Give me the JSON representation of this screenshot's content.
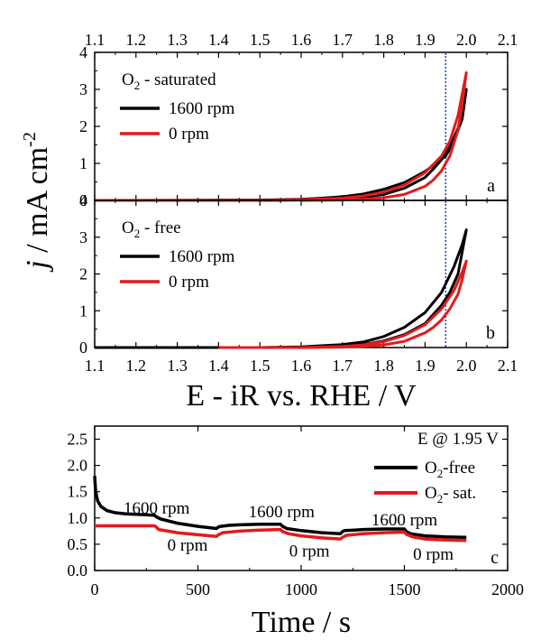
{
  "chart_data": [
    {
      "id": "a",
      "type": "line",
      "panel_label": "a",
      "annotation": {
        "main": "O",
        "sub": "2",
        "rest": " - saturated"
      },
      "legend_position": "top-left",
      "x_range": [
        1.1,
        2.1
      ],
      "y_range": [
        0,
        4
      ],
      "y_ticks": [
        "0",
        "1",
        "2",
        "3",
        "4"
      ],
      "x_ticks_top": [
        "1.1",
        "1.2",
        "1.3",
        "1.4",
        "1.5",
        "1.6",
        "1.7",
        "1.8",
        "1.9",
        "2.0",
        "2.1"
      ],
      "reference_line_x": 1.95,
      "series": [
        {
          "name": "1600 rpm",
          "color": "#000000",
          "forward": [
            [
              1.1,
              0
            ],
            [
              1.5,
              0.01
            ],
            [
              1.6,
              0.03
            ],
            [
              1.65,
              0.06
            ],
            [
              1.7,
              0.1
            ],
            [
              1.75,
              0.17
            ],
            [
              1.8,
              0.3
            ],
            [
              1.85,
              0.48
            ],
            [
              1.9,
              0.78
            ],
            [
              1.95,
              1.2
            ],
            [
              1.97,
              1.6
            ],
            [
              1.99,
              2.2
            ],
            [
              2.0,
              3.0
            ]
          ],
          "reverse": [
            [
              2.0,
              3.0
            ],
            [
              1.99,
              2.45
            ],
            [
              1.98,
              1.95
            ],
            [
              1.96,
              1.45
            ],
            [
              1.94,
              1.1
            ],
            [
              1.92,
              0.85
            ],
            [
              1.9,
              0.62
            ],
            [
              1.85,
              0.33
            ],
            [
              1.8,
              0.16
            ],
            [
              1.75,
              0.08
            ],
            [
              1.7,
              0.04
            ],
            [
              1.6,
              0.01
            ],
            [
              1.5,
              0.0
            ]
          ]
        },
        {
          "name": "0 rpm",
          "color": "#e31a1c",
          "forward": [
            [
              1.1,
              0
            ],
            [
              1.5,
              0.0
            ],
            [
              1.6,
              0.02
            ],
            [
              1.7,
              0.06
            ],
            [
              1.75,
              0.12
            ],
            [
              1.8,
              0.22
            ],
            [
              1.85,
              0.42
            ],
            [
              1.9,
              0.75
            ],
            [
              1.94,
              1.2
            ],
            [
              1.96,
              1.6
            ],
            [
              1.98,
              2.3
            ],
            [
              2.0,
              3.45
            ]
          ],
          "reverse": [
            [
              2.0,
              3.45
            ],
            [
              1.99,
              2.6
            ],
            [
              1.98,
              1.9
            ],
            [
              1.96,
              1.2
            ],
            [
              1.94,
              0.8
            ],
            [
              1.92,
              0.55
            ],
            [
              1.9,
              0.38
            ],
            [
              1.85,
              0.16
            ],
            [
              1.8,
              0.07
            ],
            [
              1.75,
              0.03
            ],
            [
              1.7,
              0.01
            ],
            [
              1.6,
              0.0
            ]
          ]
        }
      ]
    },
    {
      "id": "b",
      "type": "line",
      "panel_label": "b",
      "annotation": {
        "main": "O",
        "sub": "2",
        "rest": " - free"
      },
      "legend_position": "top-left",
      "x_range": [
        1.1,
        2.1
      ],
      "y_range": [
        0,
        4
      ],
      "y_ticks": [
        "0",
        "1",
        "2",
        "3",
        "4"
      ],
      "x_ticks_bottom": [
        "1.1",
        "1.2",
        "1.3",
        "1.4",
        "1.5",
        "1.6",
        "1.7",
        "1.8",
        "1.9",
        "2.0",
        "2.1"
      ],
      "reference_line_x": 1.95,
      "series": [
        {
          "name": "1600 rpm",
          "color": "#000000",
          "forward": [
            [
              1.1,
              0
            ],
            [
              1.5,
              0.0
            ],
            [
              1.6,
              0.02
            ],
            [
              1.7,
              0.08
            ],
            [
              1.75,
              0.15
            ],
            [
              1.8,
              0.3
            ],
            [
              1.85,
              0.55
            ],
            [
              1.9,
              0.95
            ],
            [
              1.94,
              1.5
            ],
            [
              1.97,
              2.2
            ],
            [
              1.99,
              2.8
            ],
            [
              2.0,
              3.2
            ]
          ],
          "reverse": [
            [
              2.0,
              3.2
            ],
            [
              1.99,
              2.6
            ],
            [
              1.98,
              2.0
            ],
            [
              1.96,
              1.5
            ],
            [
              1.94,
              1.15
            ],
            [
              1.92,
              0.9
            ],
            [
              1.9,
              0.65
            ],
            [
              1.85,
              0.35
            ],
            [
              1.8,
              0.18
            ],
            [
              1.75,
              0.08
            ],
            [
              1.7,
              0.03
            ],
            [
              1.6,
              0.0
            ],
            [
              1.4,
              0.0
            ]
          ]
        },
        {
          "name": "0 rpm",
          "color": "#e31a1c",
          "forward": [
            [
              1.4,
              0
            ],
            [
              1.6,
              0.0
            ],
            [
              1.7,
              0.03
            ],
            [
              1.75,
              0.07
            ],
            [
              1.8,
              0.16
            ],
            [
              1.85,
              0.33
            ],
            [
              1.9,
              0.62
            ],
            [
              1.94,
              1.05
            ],
            [
              1.97,
              1.55
            ],
            [
              1.99,
              2.05
            ],
            [
              2.0,
              2.35
            ]
          ],
          "reverse": [
            [
              2.0,
              2.35
            ],
            [
              1.99,
              1.85
            ],
            [
              1.98,
              1.45
            ],
            [
              1.96,
              1.05
            ],
            [
              1.94,
              0.75
            ],
            [
              1.92,
              0.55
            ],
            [
              1.9,
              0.4
            ],
            [
              1.85,
              0.17
            ],
            [
              1.8,
              0.07
            ],
            [
              1.75,
              0.03
            ],
            [
              1.7,
              0.01
            ],
            [
              1.6,
              0.0
            ],
            [
              1.4,
              0.0
            ]
          ]
        }
      ]
    },
    {
      "id": "c",
      "type": "line",
      "panel_label": "c",
      "annotation": {
        "main": "E @ 1.95 V",
        "sub": "",
        "rest": ""
      },
      "legend_position": "top-right",
      "x_range": [
        0,
        2000
      ],
      "y_range": [
        0,
        2.75
      ],
      "x_ticks": [
        "0",
        "500",
        "1000",
        "1500",
        "2000"
      ],
      "y_ticks": [
        "0.0",
        "0.5",
        "1.0",
        "1.5",
        "2.0",
        "2.5"
      ],
      "xlabel": "Time / s",
      "rpm_labels": [
        {
          "text": "1600 rpm",
          "x": 300,
          "y": 1.08
        },
        {
          "text": "0 rpm",
          "x": 450,
          "y": 0.38
        },
        {
          "text": "1600 rpm",
          "x": 905,
          "y": 1.01
        },
        {
          "text": "0 rpm",
          "x": 1040,
          "y": 0.27
        },
        {
          "text": "1600 rpm",
          "x": 1500,
          "y": 0.86
        },
        {
          "text": "0 rpm",
          "x": 1640,
          "y": 0.21
        }
      ],
      "series": [
        {
          "name": "O2-free",
          "legend": {
            "main": "O",
            "sub": "2",
            "rest": "-free"
          },
          "color": "#000000",
          "x": [
            0,
            5,
            15,
            30,
            60,
            100,
            150,
            200,
            250,
            290,
            300,
            320,
            400,
            500,
            590,
            600,
            610,
            650,
            700,
            800,
            900,
            910,
            930,
            1000,
            1100,
            1190,
            1200,
            1210,
            1260,
            1300,
            1400,
            1500,
            1510,
            1530,
            1600,
            1700,
            1800
          ],
          "y": [
            1.8,
            1.5,
            1.32,
            1.22,
            1.14,
            1.1,
            1.08,
            1.07,
            1.06,
            1.05,
            1.02,
            0.98,
            0.9,
            0.84,
            0.8,
            0.83,
            0.84,
            0.86,
            0.87,
            0.88,
            0.88,
            0.84,
            0.8,
            0.76,
            0.72,
            0.7,
            0.74,
            0.76,
            0.77,
            0.78,
            0.79,
            0.79,
            0.74,
            0.7,
            0.66,
            0.64,
            0.63
          ]
        },
        {
          "name": "O2- sat.",
          "legend": {
            "main": "O",
            "sub": "2",
            "rest": "- sat."
          },
          "color": "#e31a1c",
          "x": [
            0,
            100,
            200,
            290,
            300,
            310,
            400,
            500,
            590,
            600,
            620,
            700,
            800,
            900,
            910,
            940,
            1000,
            1100,
            1190,
            1200,
            1220,
            1300,
            1400,
            1500,
            1510,
            1540,
            1600,
            1700,
            1800
          ],
          "y": [
            0.85,
            0.85,
            0.85,
            0.85,
            0.82,
            0.78,
            0.72,
            0.68,
            0.65,
            0.68,
            0.72,
            0.75,
            0.77,
            0.78,
            0.74,
            0.7,
            0.66,
            0.62,
            0.6,
            0.63,
            0.67,
            0.7,
            0.72,
            0.73,
            0.69,
            0.64,
            0.6,
            0.58,
            0.57
          ]
        }
      ]
    }
  ],
  "shared_ylabel": {
    "italic": "j",
    "rest": " / mA cm",
    "sup": "-2"
  },
  "shared_xlabel": "E - iR vs. RHE / V"
}
